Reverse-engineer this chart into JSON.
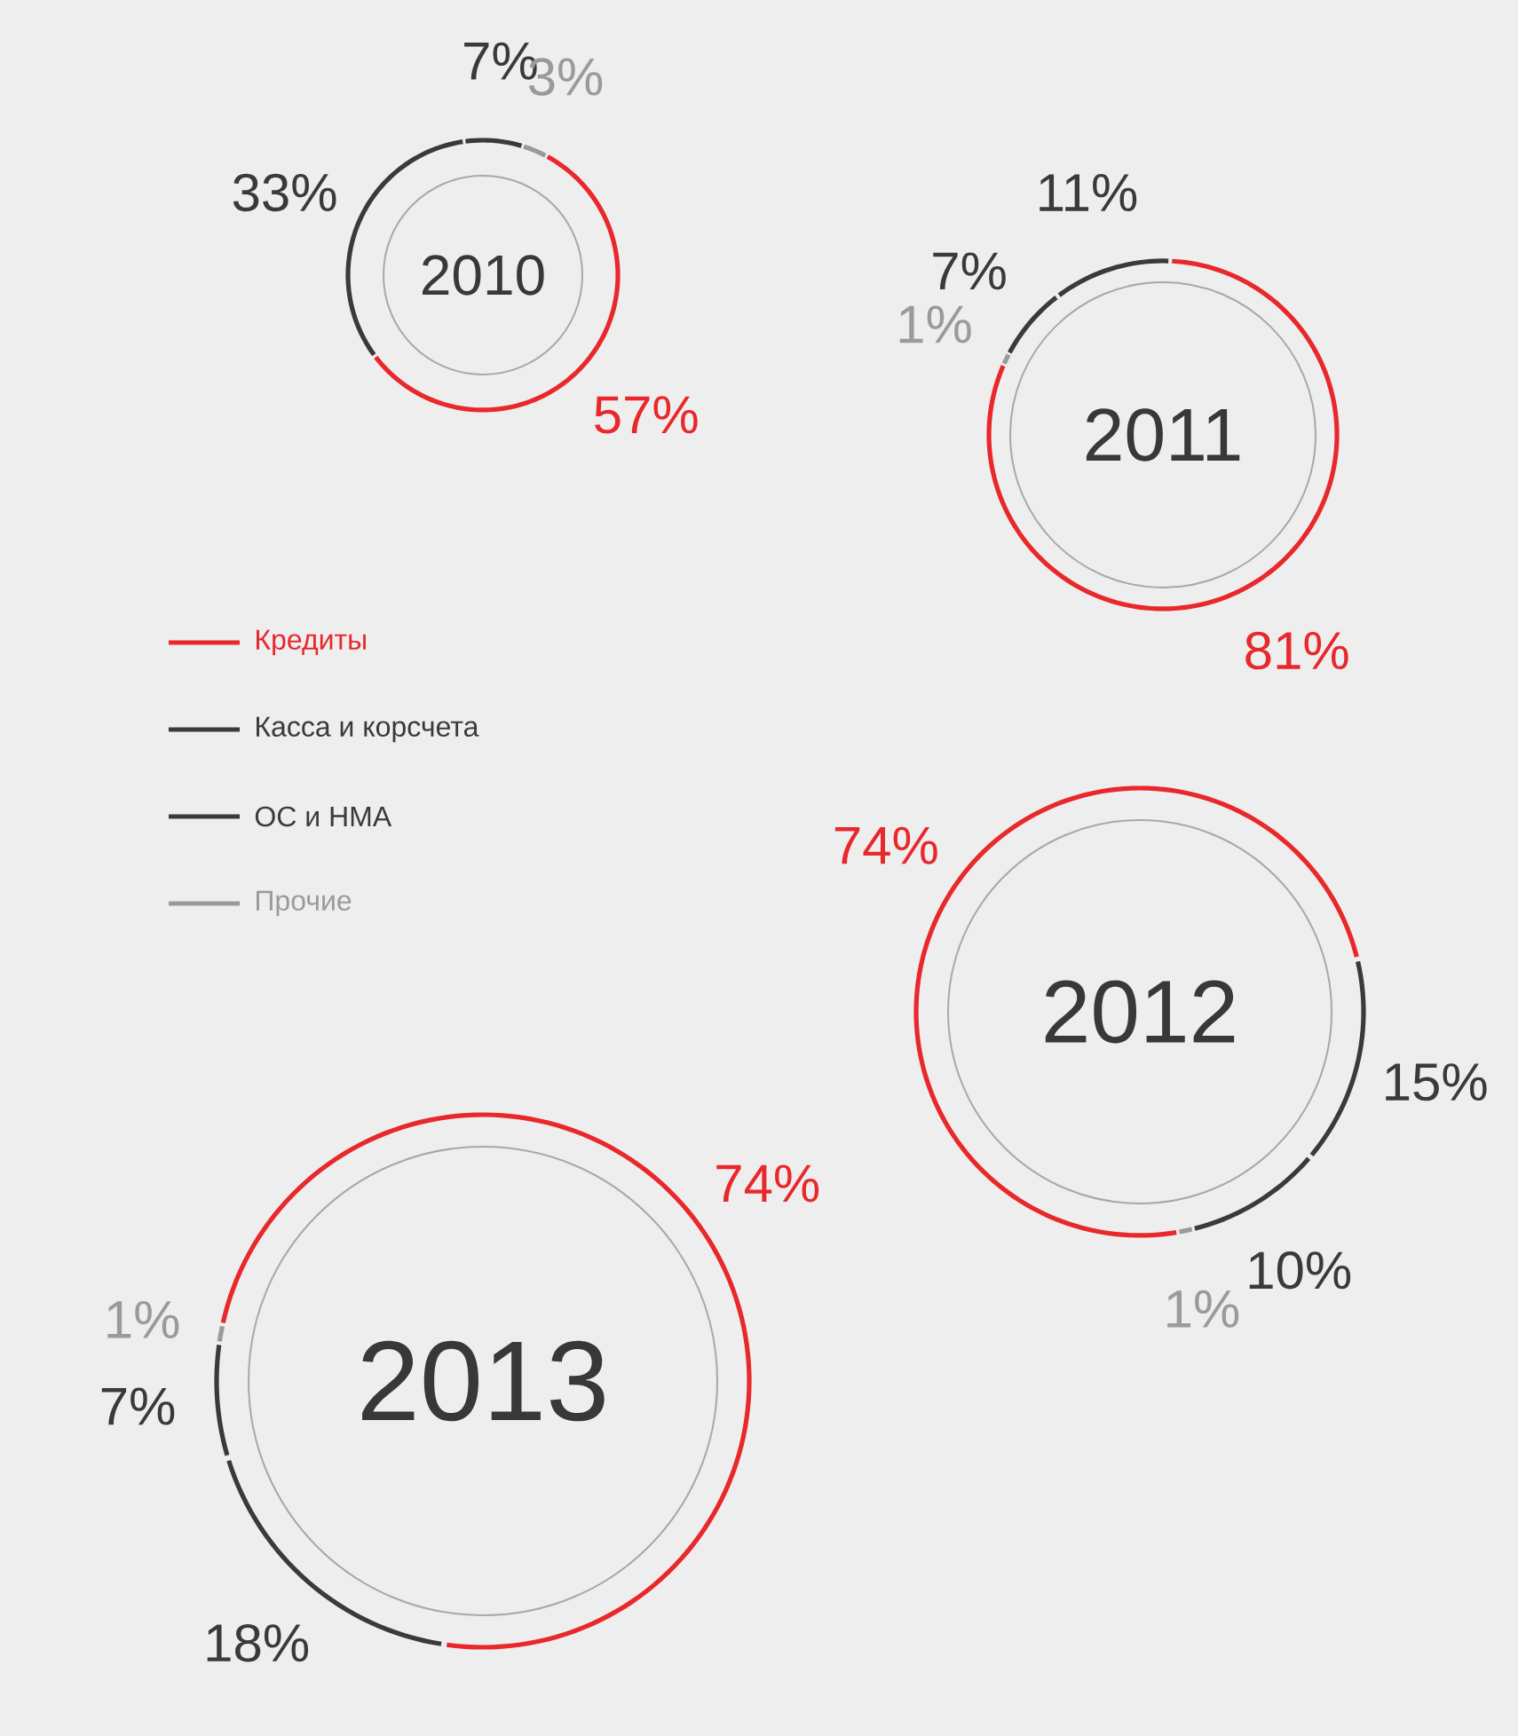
{
  "chart_data": [
    {
      "type": "donut",
      "title": "2010",
      "categories": [
        "Кредиты",
        "Касса и корсчета",
        "ОС и НМА",
        "Прочие"
      ],
      "values": [
        57,
        33,
        7,
        3
      ],
      "value_labels": [
        "57%",
        "33%",
        "7%",
        "3%"
      ],
      "colors": [
        "#e8282b",
        "#3a3a3a",
        "#3a3a3a",
        "#9a9a9a"
      ],
      "legend": "left"
    },
    {
      "type": "donut",
      "title": "2011",
      "values": [
        81,
        11,
        7,
        1
      ],
      "value_labels": [
        "81%",
        "11%",
        "7%",
        "1%"
      ],
      "colors": [
        "#e8282b",
        "#3a3a3a",
        "#3a3a3a",
        "#9a9a9a"
      ]
    },
    {
      "type": "donut",
      "title": "2012",
      "values": [
        74,
        15,
        10,
        1
      ],
      "value_labels": [
        "74%",
        "15%",
        "10%",
        "1%"
      ],
      "colors": [
        "#e8282b",
        "#3a3a3a",
        "#3a3a3a",
        "#9a9a9a"
      ]
    },
    {
      "type": "donut",
      "title": "2013",
      "values": [
        74,
        18,
        7,
        1
      ],
      "value_labels": [
        "74%",
        "18%",
        "7%",
        "1%"
      ],
      "colors": [
        "#e8282b",
        "#3a3a3a",
        "#3a3a3a",
        "#9a9a9a"
      ]
    }
  ]
}
